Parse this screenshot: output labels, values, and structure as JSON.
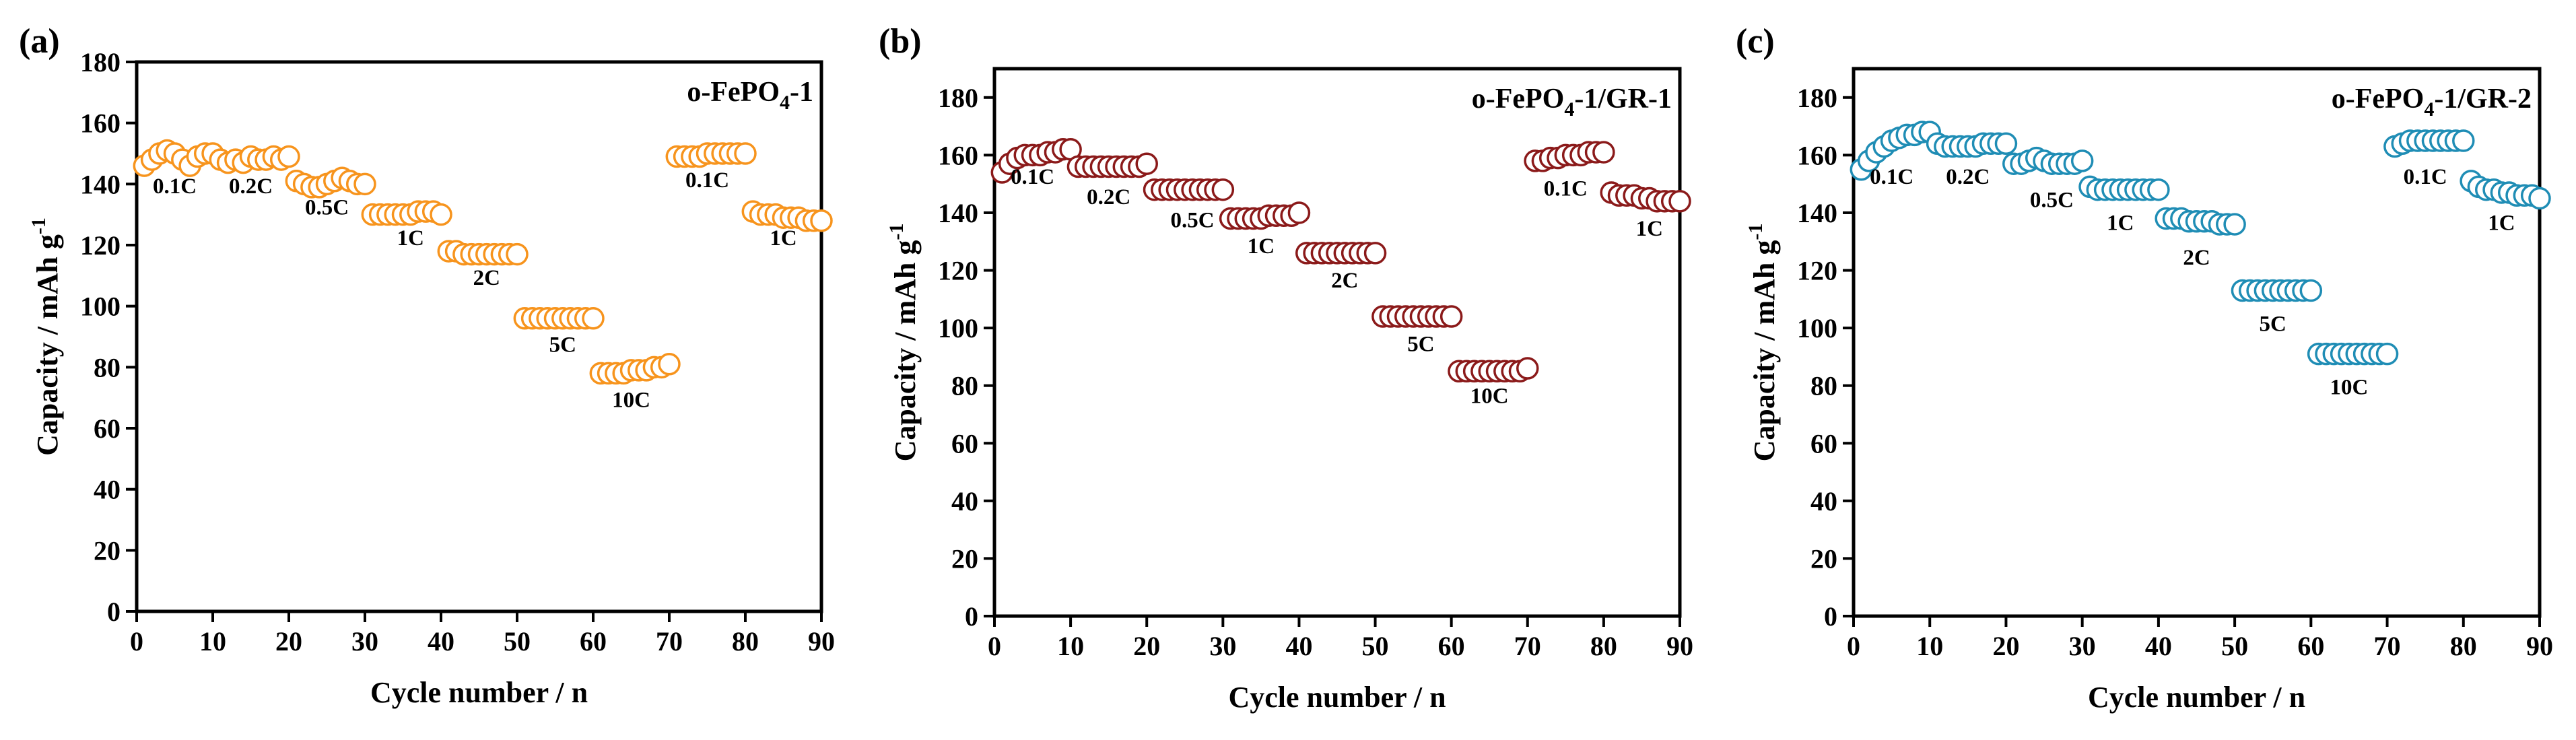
{
  "figure": {
    "axis_color": "#000000"
  },
  "chart_data": [
    {
      "type": "scatter",
      "panel": "(a)",
      "title": "o-FePO",
      "title_sub": "4",
      "title_suffix": "-1",
      "xlabel": "Cycle number / n",
      "ylabel": "Capacity / mAh g",
      "ylabel_sup": "-1",
      "xlim": [
        0,
        90
      ],
      "ylim": [
        0,
        180
      ],
      "xticks": [
        0,
        10,
        20,
        30,
        40,
        50,
        60,
        70,
        80,
        90
      ],
      "yticks": [
        0,
        20,
        40,
        60,
        80,
        100,
        120,
        140,
        160,
        180
      ],
      "marker_color": "#F7941D",
      "series": [
        {
          "name": "o-FePO4-1",
          "x": [
            1,
            2,
            3,
            4,
            5,
            6,
            7,
            8,
            9,
            10,
            11,
            12,
            13,
            14,
            15,
            16,
            17,
            18,
            19,
            20,
            21,
            22,
            23,
            24,
            25,
            26,
            27,
            28,
            29,
            30,
            31,
            32,
            33,
            34,
            35,
            36,
            37,
            38,
            39,
            40,
            41,
            42,
            43,
            44,
            45,
            46,
            47,
            48,
            49,
            50,
            51,
            52,
            53,
            54,
            55,
            56,
            57,
            58,
            59,
            60,
            61,
            62,
            63,
            64,
            65,
            66,
            67,
            68,
            69,
            70,
            71,
            72,
            73,
            74,
            75,
            76,
            77,
            78,
            79,
            80,
            81,
            82,
            83,
            84,
            85,
            86,
            87,
            88,
            89,
            90
          ],
          "values": [
            146,
            148,
            150,
            151,
            150,
            148,
            146,
            149,
            150,
            150,
            148,
            147,
            148,
            147,
            149,
            148,
            148,
            149,
            148,
            149,
            141,
            140,
            139,
            139,
            140,
            141,
            142,
            141,
            140,
            140,
            130,
            130,
            130,
            130,
            130,
            130,
            131,
            131,
            131,
            130,
            118,
            118,
            117,
            117,
            117,
            117,
            117,
            117,
            117,
            117,
            96,
            96,
            96,
            96,
            96,
            96,
            96,
            96,
            96,
            96,
            78,
            78,
            78,
            78,
            79,
            79,
            79,
            80,
            80,
            81,
            149,
            149,
            149,
            149,
            150,
            150,
            150,
            150,
            150,
            150,
            131,
            130,
            130,
            130,
            129,
            129,
            129,
            128,
            128,
            128
          ]
        }
      ],
      "rate_labels": [
        {
          "text": "0.1C",
          "x": 5,
          "y": 137
        },
        {
          "text": "0.2C",
          "x": 15,
          "y": 137
        },
        {
          "text": "0.5C",
          "x": 25,
          "y": 130
        },
        {
          "text": "1C",
          "x": 36,
          "y": 120
        },
        {
          "text": "2C",
          "x": 46,
          "y": 107
        },
        {
          "text": "5C",
          "x": 56,
          "y": 85
        },
        {
          "text": "10C",
          "x": 65,
          "y": 67
        },
        {
          "text": "0.1C",
          "x": 75,
          "y": 139
        },
        {
          "text": "1C",
          "x": 85,
          "y": 120
        }
      ]
    },
    {
      "type": "scatter",
      "panel": "(b)",
      "title": "o-FePO",
      "title_sub": "4",
      "title_suffix": "-1/GR-1",
      "xlabel": "Cycle number / n",
      "ylabel": "Capacity / mAh g",
      "ylabel_sup": "-1",
      "xlim": [
        0,
        90
      ],
      "ylim": [
        0,
        190
      ],
      "xticks": [
        0,
        10,
        20,
        30,
        40,
        50,
        60,
        70,
        80,
        90
      ],
      "yticks": [
        0,
        20,
        40,
        60,
        80,
        100,
        120,
        140,
        160,
        180
      ],
      "marker_color": "#8B1A1A",
      "series": [
        {
          "name": "o-FePO4-1/GR-1",
          "x": [
            1,
            2,
            3,
            4,
            5,
            6,
            7,
            8,
            9,
            10,
            11,
            12,
            13,
            14,
            15,
            16,
            17,
            18,
            19,
            20,
            21,
            22,
            23,
            24,
            25,
            26,
            27,
            28,
            29,
            30,
            31,
            32,
            33,
            34,
            35,
            36,
            37,
            38,
            39,
            40,
            41,
            42,
            43,
            44,
            45,
            46,
            47,
            48,
            49,
            50,
            51,
            52,
            53,
            54,
            55,
            56,
            57,
            58,
            59,
            60,
            61,
            62,
            63,
            64,
            65,
            66,
            67,
            68,
            69,
            70,
            71,
            72,
            73,
            74,
            75,
            76,
            77,
            78,
            79,
            80,
            81,
            82,
            83,
            84,
            85,
            86,
            87,
            88,
            89,
            90
          ],
          "values": [
            154,
            157,
            159,
            160,
            160,
            160,
            161,
            161,
            162,
            162,
            156,
            156,
            156,
            156,
            156,
            156,
            156,
            156,
            156,
            157,
            148,
            148,
            148,
            148,
            148,
            148,
            148,
            148,
            148,
            148,
            138,
            138,
            138,
            138,
            138,
            139,
            139,
            139,
            139,
            140,
            126,
            126,
            126,
            126,
            126,
            126,
            126,
            126,
            126,
            126,
            104,
            104,
            104,
            104,
            104,
            104,
            104,
            104,
            104,
            104,
            85,
            85,
            85,
            85,
            85,
            85,
            85,
            85,
            85,
            86,
            158,
            158,
            159,
            159,
            160,
            160,
            160,
            161,
            161,
            161,
            147,
            146,
            146,
            146,
            145,
            145,
            144,
            144,
            144,
            144
          ]
        }
      ],
      "rate_labels": [
        {
          "text": "0.1C",
          "x": 5,
          "y": 150
        },
        {
          "text": "0.2C",
          "x": 15,
          "y": 143
        },
        {
          "text": "0.5C",
          "x": 26,
          "y": 135
        },
        {
          "text": "1C",
          "x": 35,
          "y": 126
        },
        {
          "text": "2C",
          "x": 46,
          "y": 114
        },
        {
          "text": "5C",
          "x": 56,
          "y": 92
        },
        {
          "text": "10C",
          "x": 65,
          "y": 74
        },
        {
          "text": "0.1C",
          "x": 75,
          "y": 146
        },
        {
          "text": "1C",
          "x": 86,
          "y": 132
        }
      ]
    },
    {
      "type": "scatter",
      "panel": "(c)",
      "title": "o-FePO",
      "title_sub": "4",
      "title_suffix": "-1/GR-2",
      "xlabel": "Cycle number / n",
      "ylabel": "Capacity / mAh g",
      "ylabel_sup": "-1",
      "xlim": [
        0,
        90
      ],
      "ylim": [
        0,
        190
      ],
      "xticks": [
        0,
        10,
        20,
        30,
        40,
        50,
        60,
        70,
        80,
        90
      ],
      "yticks": [
        0,
        20,
        40,
        60,
        80,
        100,
        120,
        140,
        160,
        180
      ],
      "marker_color": "#1F8DB5",
      "series": [
        {
          "name": "o-FePO4-1/GR-2",
          "x": [
            1,
            2,
            3,
            4,
            5,
            6,
            7,
            8,
            9,
            10,
            11,
            12,
            13,
            14,
            15,
            16,
            17,
            18,
            19,
            20,
            21,
            22,
            23,
            24,
            25,
            26,
            27,
            28,
            29,
            30,
            31,
            32,
            33,
            34,
            35,
            36,
            37,
            38,
            39,
            40,
            41,
            42,
            43,
            44,
            45,
            46,
            47,
            48,
            49,
            50,
            51,
            52,
            53,
            54,
            55,
            56,
            57,
            58,
            59,
            60,
            61,
            62,
            63,
            64,
            65,
            66,
            67,
            68,
            69,
            70,
            71,
            72,
            73,
            74,
            75,
            76,
            77,
            78,
            79,
            80,
            81,
            82,
            83,
            84,
            85,
            86,
            87,
            88,
            89,
            90
          ],
          "values": [
            155,
            158,
            161,
            163,
            165,
            166,
            167,
            167,
            168,
            168,
            164,
            163,
            163,
            163,
            163,
            163,
            164,
            164,
            164,
            164,
            157,
            157,
            158,
            159,
            158,
            157,
            157,
            157,
            157,
            158,
            149,
            148,
            148,
            148,
            148,
            148,
            148,
            148,
            148,
            148,
            138,
            138,
            138,
            137,
            137,
            137,
            137,
            136,
            136,
            136,
            113,
            113,
            113,
            113,
            113,
            113,
            113,
            113,
            113,
            113,
            91,
            91,
            91,
            91,
            91,
            91,
            91,
            91,
            91,
            91,
            163,
            164,
            165,
            165,
            165,
            165,
            165,
            165,
            165,
            165,
            151,
            149,
            148,
            148,
            147,
            147,
            146,
            146,
            146,
            145
          ]
        }
      ],
      "rate_labels": [
        {
          "text": "0.1C",
          "x": 5,
          "y": 150
        },
        {
          "text": "0.2C",
          "x": 15,
          "y": 150
        },
        {
          "text": "0.5C",
          "x": 26,
          "y": 142
        },
        {
          "text": "1C",
          "x": 35,
          "y": 134
        },
        {
          "text": "2C",
          "x": 45,
          "y": 122
        },
        {
          "text": "5C",
          "x": 55,
          "y": 99
        },
        {
          "text": "10C",
          "x": 65,
          "y": 77
        },
        {
          "text": "0.1C",
          "x": 75,
          "y": 150
        },
        {
          "text": "1C",
          "x": 85,
          "y": 134
        }
      ]
    }
  ]
}
